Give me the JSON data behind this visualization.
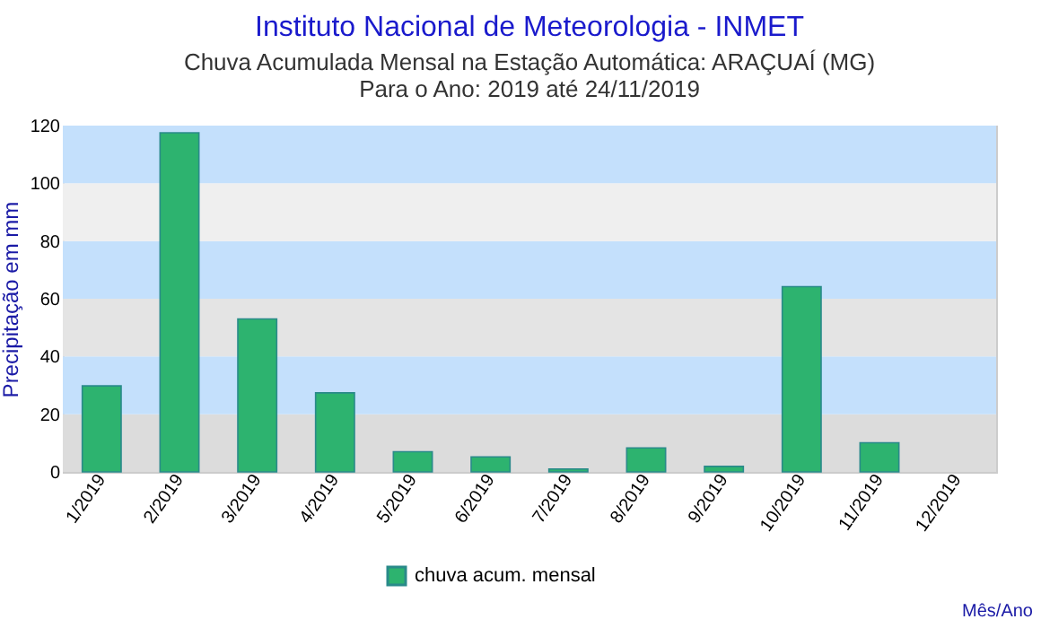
{
  "chart_data": {
    "type": "bar",
    "title": "Instituto Nacional de Meteorologia - INMET",
    "subtitle": "Chuva Acumulada Mensal na Estação Automática: ARAÇUAÍ (MG)",
    "annotations": [
      "Para o Ano: 2019 até 24/11/2019"
    ],
    "xlabel": "Mês/Ano",
    "ylabel": "Precipitação em mm",
    "categories": [
      "1/2019",
      "2/2019",
      "3/2019",
      "4/2019",
      "5/2019",
      "6/2019",
      "7/2019",
      "8/2019",
      "9/2019",
      "10/2019",
      "11/2019",
      "12/2019"
    ],
    "series": [
      {
        "name": "chuva acum. mensal",
        "color": "#2db36f",
        "values": [
          29.8,
          117.5,
          53,
          27.4,
          7,
          5.2,
          1,
          8.3,
          1.9,
          64.2,
          10.1,
          null
        ]
      }
    ],
    "ylim": [
      0,
      120
    ],
    "yticks": [
      0,
      20,
      40,
      60,
      80,
      100,
      120
    ],
    "bands": [
      {
        "axis": "y",
        "from": 0,
        "to": 20,
        "color": "#dcdcdc"
      },
      {
        "axis": "y",
        "from": 20,
        "to": 40,
        "color": "#c4e0fc"
      },
      {
        "axis": "y",
        "from": 40,
        "to": 60,
        "color": "#e4e4e4"
      },
      {
        "axis": "y",
        "from": 60,
        "to": 80,
        "color": "#c4e0fc"
      },
      {
        "axis": "y",
        "from": 80,
        "to": 100,
        "color": "#efefef"
      },
      {
        "axis": "y",
        "from": 100,
        "to": 120,
        "color": "#c4e0fc"
      }
    ],
    "legend": "bottom"
  }
}
